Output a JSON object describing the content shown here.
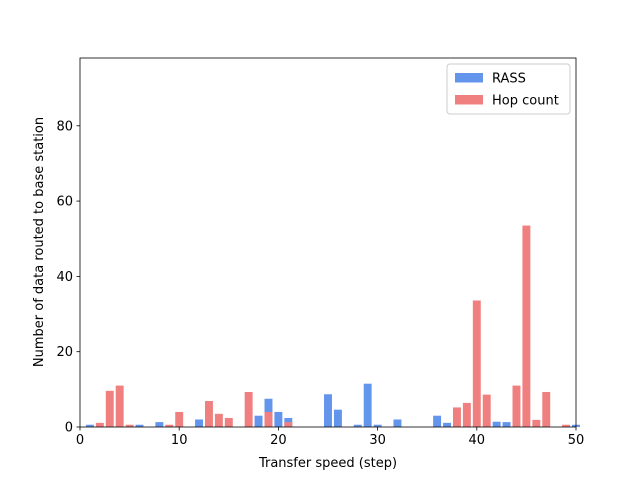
{
  "chart_data": {
    "type": "bar",
    "title": "",
    "xlabel": "Transfer speed (step)",
    "ylabel": "Number of data routed to base station",
    "xlim": [
      0,
      50
    ],
    "ylim": [
      0,
      98
    ],
    "xticks": [
      0,
      10,
      20,
      30,
      40,
      50
    ],
    "yticks": [
      0,
      20,
      40,
      60,
      80
    ],
    "grid": false,
    "legend_position": "top-right",
    "series": [
      {
        "name": "RASS",
        "color": "#6495ED",
        "points": [
          [
            1,
            0.6
          ],
          [
            6,
            0.6
          ],
          [
            8,
            1.3
          ],
          [
            12,
            2.0
          ],
          [
            18,
            3.0
          ],
          [
            19,
            7.5
          ],
          [
            20,
            4.0
          ],
          [
            21,
            2.4
          ],
          [
            25,
            8.7
          ],
          [
            26,
            4.6
          ],
          [
            28,
            0.6
          ],
          [
            29,
            11.5
          ],
          [
            30,
            0.6
          ],
          [
            32,
            2.0
          ],
          [
            36,
            3.0
          ],
          [
            37,
            1.1
          ],
          [
            42,
            1.4
          ],
          [
            43,
            1.3
          ],
          [
            50,
            0.6
          ]
        ]
      },
      {
        "name": "Hop count",
        "color": "#F08080",
        "points": [
          [
            2,
            1.1
          ],
          [
            3,
            9.6
          ],
          [
            4,
            11.0
          ],
          [
            5,
            0.6
          ],
          [
            9,
            0.6
          ],
          [
            10,
            4.0
          ],
          [
            13,
            6.9
          ],
          [
            14,
            3.5
          ],
          [
            15,
            2.4
          ],
          [
            17,
            9.3
          ],
          [
            19,
            4.0
          ],
          [
            21,
            1.3
          ],
          [
            38,
            5.2
          ],
          [
            39,
            6.4
          ],
          [
            40,
            33.6
          ],
          [
            41,
            8.6
          ],
          [
            44,
            11.0
          ],
          [
            45,
            53.5
          ],
          [
            46,
            1.9
          ],
          [
            47,
            9.3
          ],
          [
            49,
            0.6
          ]
        ]
      }
    ]
  }
}
